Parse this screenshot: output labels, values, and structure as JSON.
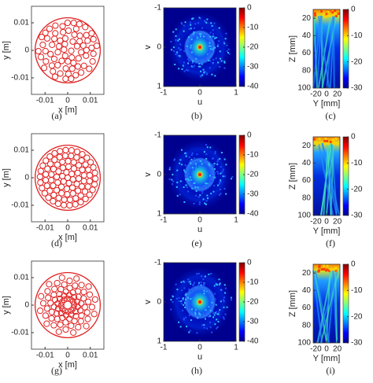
{
  "chart_data": [
    {
      "type": "scatter",
      "pattern": "random",
      "color": "#e02020",
      "xlabel": "x [m]",
      "ylabel": "y [m]",
      "caption": "(a)",
      "xlim": [
        -0.016,
        0.016
      ],
      "ylim": [
        -0.016,
        0.016
      ],
      "xticks": [
        -0.01,
        0,
        0.01
      ],
      "yticks": [
        -0.01,
        0,
        0.01
      ]
    },
    {
      "type": "heatmap",
      "pattern": "ring",
      "xlabel": "u",
      "ylabel": "v",
      "caption": "(b)",
      "xlim": [
        -1,
        1
      ],
      "ylim": [
        -1,
        1
      ],
      "y_inverted": true,
      "xticks": [
        -1,
        0,
        1
      ],
      "yticks": [
        -1,
        0,
        1
      ],
      "clim": [
        -40,
        0
      ],
      "cticks": [
        0,
        -10,
        -20,
        -30,
        -40
      ]
    },
    {
      "type": "heatmap",
      "pattern": "beam",
      "xlabel": "Y [mm]",
      "ylabel": "Z [mm]",
      "caption": "(c)",
      "xlim": [
        -25,
        25
      ],
      "ylim": [
        10,
        100
      ],
      "y_inverted": true,
      "xticks": [
        -20,
        0,
        20
      ],
      "yticks": [
        20,
        40,
        60,
        80,
        100
      ],
      "clim": [
        -30,
        0
      ],
      "cticks": [
        0,
        -10,
        -20,
        -30
      ]
    },
    {
      "type": "scatter",
      "pattern": "concentric",
      "color": "#e02020",
      "xlabel": "x [m]",
      "ylabel": "y [m]",
      "caption": "(d)",
      "xlim": [
        -0.016,
        0.016
      ],
      "ylim": [
        -0.016,
        0.016
      ],
      "xticks": [
        -0.01,
        0,
        0.01
      ],
      "yticks": [
        -0.01,
        0,
        0.01
      ]
    },
    {
      "type": "heatmap",
      "pattern": "ring",
      "xlabel": "u",
      "ylabel": "v",
      "caption": "(e)",
      "xlim": [
        -1,
        1
      ],
      "ylim": [
        -1,
        1
      ],
      "y_inverted": true,
      "xticks": [
        -1,
        0,
        1
      ],
      "yticks": [
        -1,
        0,
        1
      ],
      "clim": [
        -40,
        0
      ],
      "cticks": [
        0,
        -10,
        -20,
        -30,
        -40
      ]
    },
    {
      "type": "heatmap",
      "pattern": "beam",
      "xlabel": "Y [mm]",
      "ylabel": "Z [mm]",
      "caption": "(f)",
      "xlim": [
        -25,
        25
      ],
      "ylim": [
        10,
        100
      ],
      "y_inverted": true,
      "xticks": [
        -20,
        0,
        20
      ],
      "yticks": [
        20,
        40,
        60,
        80,
        100
      ],
      "clim": [
        -30,
        0
      ],
      "cticks": [
        0,
        -10,
        -20,
        -30
      ]
    },
    {
      "type": "scatter",
      "pattern": "spiral",
      "color": "#e02020",
      "xlabel": "x [m]",
      "ylabel": "y [m]",
      "caption": "(g)",
      "xlim": [
        -0.016,
        0.016
      ],
      "ylim": [
        -0.016,
        0.016
      ],
      "xticks": [
        -0.01,
        0,
        0.01
      ],
      "yticks": [
        -0.01,
        0,
        0.01
      ]
    },
    {
      "type": "heatmap",
      "pattern": "ring",
      "xlabel": "u",
      "ylabel": "v",
      "caption": "(h)",
      "xlim": [
        -1,
        1
      ],
      "ylim": [
        -1,
        1
      ],
      "y_inverted": true,
      "xticks": [
        -1,
        0,
        1
      ],
      "yticks": [
        -1,
        0,
        1
      ],
      "clim": [
        -40,
        0
      ],
      "cticks": [
        0,
        -10,
        -20,
        -30,
        -40
      ]
    },
    {
      "type": "heatmap",
      "pattern": "beam",
      "xlabel": "Y [mm]",
      "ylabel": "Z [mm]",
      "caption": "(i)",
      "xlim": [
        -25,
        25
      ],
      "ylim": [
        10,
        100
      ],
      "y_inverted": true,
      "xticks": [
        -20,
        0,
        20
      ],
      "yticks": [
        20,
        40,
        60,
        80,
        100
      ],
      "clim": [
        -30,
        0
      ],
      "cticks": [
        0,
        -10,
        -20,
        -30
      ]
    }
  ]
}
